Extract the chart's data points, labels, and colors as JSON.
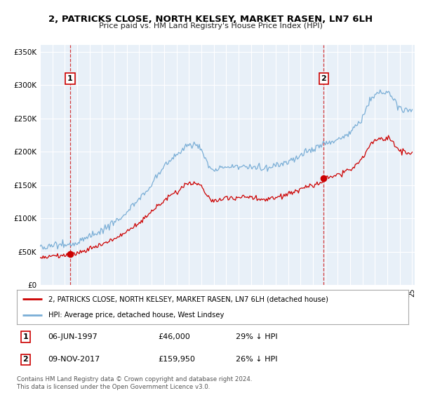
{
  "title": "2, PATRICKS CLOSE, NORTH KELSEY, MARKET RASEN, LN7 6LH",
  "subtitle": "Price paid vs. HM Land Registry's House Price Index (HPI)",
  "legend_line1": "2, PATRICKS CLOSE, NORTH KELSEY, MARKET RASEN, LN7 6LH (detached house)",
  "legend_line2": "HPI: Average price, detached house, West Lindsey",
  "sale1_date": "06-JUN-1997",
  "sale1_price": "£46,000",
  "sale1_hpi": "29% ↓ HPI",
  "sale2_date": "09-NOV-2017",
  "sale2_price": "£159,950",
  "sale2_hpi": "26% ↓ HPI",
  "footer": "Contains HM Land Registry data © Crown copyright and database right 2024.\nThis data is licensed under the Open Government Licence v3.0.",
  "ylim": [
    0,
    360000
  ],
  "yticks": [
    0,
    50000,
    100000,
    150000,
    200000,
    250000,
    300000,
    350000
  ],
  "ytick_labels": [
    "£0",
    "£50K",
    "£100K",
    "£150K",
    "£200K",
    "£250K",
    "£300K",
    "£350K"
  ],
  "price_color": "#cc0000",
  "hpi_color": "#7aaed6",
  "background_color": "#e8f0f8",
  "sale1_x_year": 1997.43,
  "sale2_x_year": 2017.86,
  "sale1_price_val": 46000,
  "sale2_price_val": 159950,
  "xlim_start": 1995.0,
  "xlim_end": 2025.2
}
